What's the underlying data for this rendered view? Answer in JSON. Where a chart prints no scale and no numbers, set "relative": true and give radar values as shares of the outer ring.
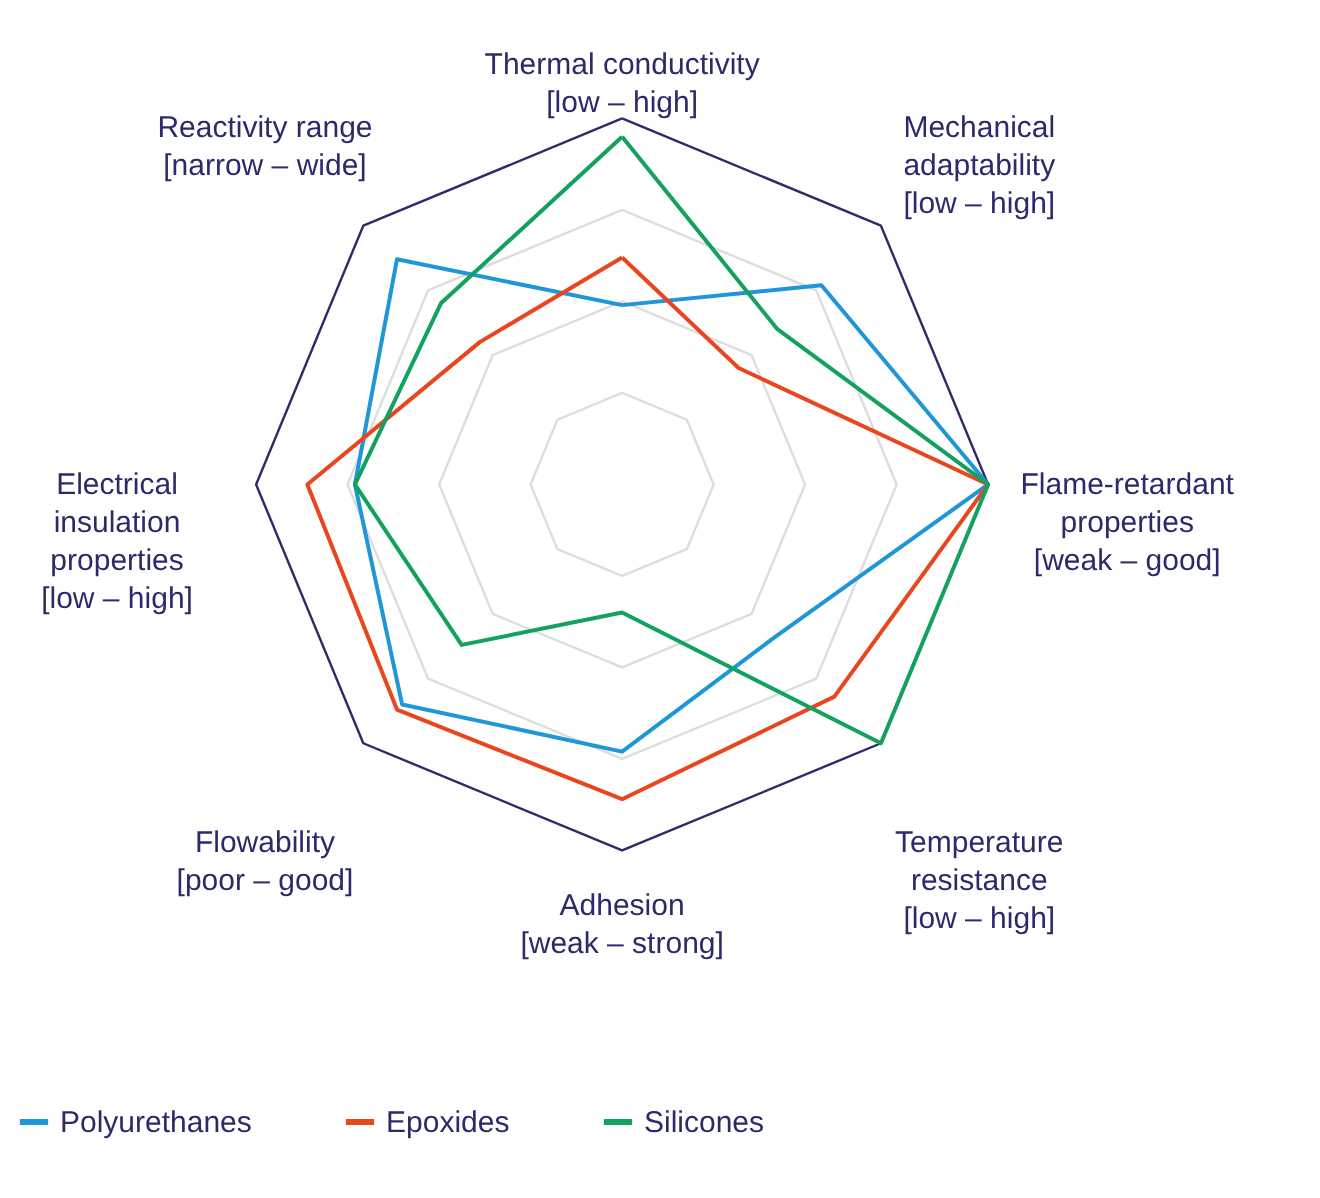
{
  "chart_data": {
    "type": "radar",
    "relative": true,
    "grid": true,
    "legend": "bottom",
    "marker": "none",
    "categories": [
      "Thermal conductivity\n[low – high]",
      "Mechanical\nadaptability\n[low – high]",
      "Flame-retardant\nproperties\n[weak – good]",
      "Temperature\nresistance\n[low – high]",
      "Adhesion\n[weak – strong]",
      "Flowability\n[poor – good]",
      "Electrical\ninsulation\nproperties\n[low – high]",
      "Reactivity range\n[narrow – wide]"
    ],
    "series": [
      {
        "name": "Polyurethanes",
        "color": "#1e96d7",
        "values": [
          0.49,
          0.77,
          1.0,
          0.59,
          0.73,
          0.85,
          0.73,
          0.87
        ]
      },
      {
        "name": "Epoxides",
        "color": "#e8461e",
        "values": [
          0.62,
          0.45,
          1.0,
          0.82,
          0.86,
          0.87,
          0.86,
          0.55
        ]
      },
      {
        "name": "Silicones",
        "color": "#12a25e",
        "values": [
          0.95,
          0.6,
          1.0,
          1.0,
          0.35,
          0.62,
          0.73,
          0.7
        ]
      }
    ]
  }
}
